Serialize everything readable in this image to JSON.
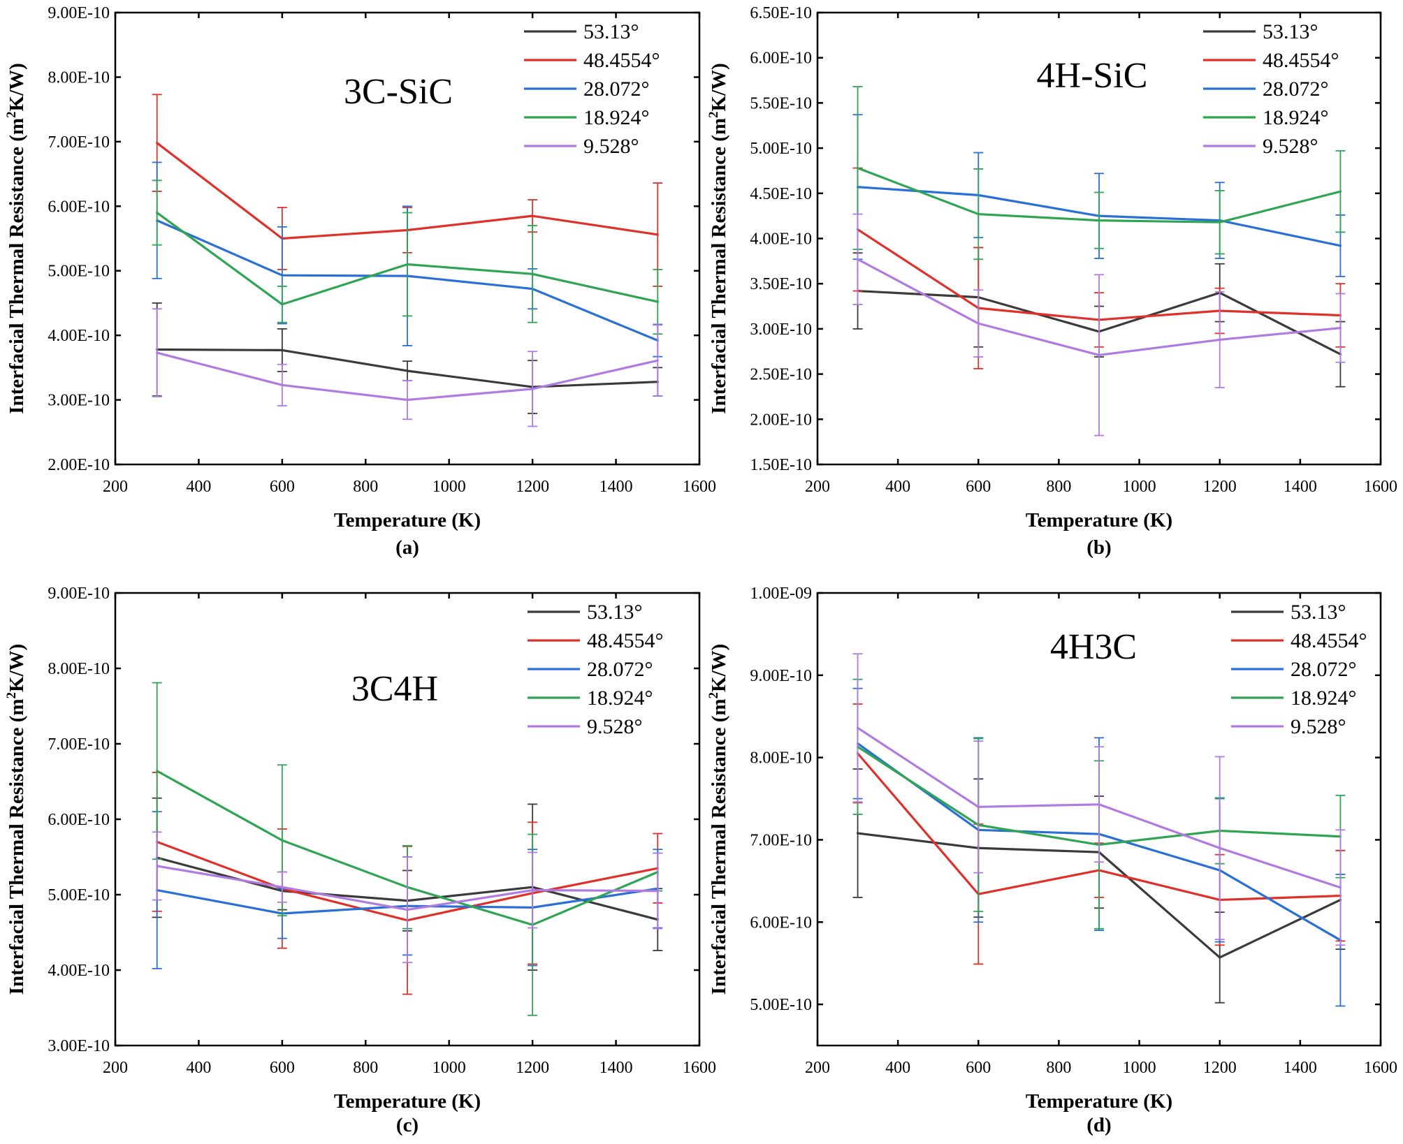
{
  "colors": {
    "53.13°": "#3a3a3a",
    "48.4554°": "#e0302a",
    "28.072°": "#2a6fd6",
    "18.924°": "#2fa554",
    "9.528°": "#b07ae0"
  },
  "chart_data": [
    {
      "type": "line",
      "panel_label": "(a)",
      "title": "3C-SiC",
      "xlabel": "Temperature (K)",
      "ylabel_main": "Interfacial Thermal Resistance (m",
      "ylabel_sup": "2",
      "ylabel_end": "K/W)",
      "xlim": [
        200,
        1600
      ],
      "ylim": [
        2e-10,
        9e-10
      ],
      "x_ticks": [
        "200",
        "400",
        "600",
        "800",
        "1000",
        "1200",
        "1400",
        "1600"
      ],
      "y_ticks": [
        "2.00E-10",
        "3.00E-10",
        "4.00E-10",
        "5.00E-10",
        "6.00E-10",
        "7.00E-10",
        "8.00E-10",
        "9.00E-10"
      ],
      "x": [
        300,
        600,
        900,
        1200,
        1500
      ],
      "series": [
        {
          "name": "53.13°",
          "values": [
            3.78e-10,
            3.77e-10,
            3.45e-10,
            3.2e-10,
            3.28e-10
          ],
          "errors": [
            7.2e-11,
            3.3e-11,
            1.5e-11,
            4.1e-11,
            2.2e-11
          ]
        },
        {
          "name": "48.4554°",
          "values": [
            6.98e-10,
            5.5e-10,
            5.63e-10,
            5.85e-10,
            5.56e-10
          ],
          "errors": [
            7.5e-11,
            4.8e-11,
            3.5e-11,
            2.5e-11,
            8e-11
          ]
        },
        {
          "name": "28.072°",
          "values": [
            5.78e-10,
            4.93e-10,
            4.92e-10,
            4.72e-10,
            3.92e-10
          ],
          "errors": [
            9e-11,
            7.5e-11,
            1.08e-10,
            3.1e-11,
            2.5e-11
          ]
        },
        {
          "name": "18.924°",
          "values": [
            5.9e-10,
            4.48e-10,
            5.1e-10,
            4.95e-10,
            4.52e-10
          ],
          "errors": [
            5e-11,
            2.8e-11,
            8e-11,
            7.5e-11,
            5e-11
          ]
        },
        {
          "name": "9.528°",
          "values": [
            3.73e-10,
            3.23e-10,
            3e-10,
            3.17e-10,
            3.61e-10
          ],
          "errors": [
            6.8e-11,
            3.2e-11,
            3e-11,
            5.8e-11,
            5.5e-11
          ]
        }
      ]
    },
    {
      "type": "line",
      "panel_label": "(b)",
      "title": "4H-SiC",
      "xlabel": "Temperature (K)",
      "ylabel_main": "Interfacial Thermal Resistance (m",
      "ylabel_sup": "2",
      "ylabel_end": "K/W)",
      "xlim": [
        200,
        1600
      ],
      "ylim": [
        1.5e-10,
        6.5e-10
      ],
      "x_ticks": [
        "200",
        "400",
        "600",
        "800",
        "1000",
        "1200",
        "1400",
        "1600"
      ],
      "y_ticks": [
        "1.50E-10",
        "2.00E-10",
        "2.50E-10",
        "3.00E-10",
        "3.50E-10",
        "4.00E-10",
        "4.50E-10",
        "5.00E-10",
        "5.50E-10",
        "6.00E-10",
        "6.50E-10"
      ],
      "x": [
        300,
        600,
        900,
        1200,
        1500
      ],
      "series": [
        {
          "name": "53.13°",
          "values": [
            3.42e-10,
            3.35e-10,
            2.97e-10,
            3.4e-10,
            2.72e-10
          ],
          "errors": [
            4.2e-11,
            5.5e-11,
            2.8e-11,
            3.2e-11,
            3.6e-11
          ]
        },
        {
          "name": "48.4554°",
          "values": [
            4.1e-10,
            3.23e-10,
            3.1e-10,
            3.2e-10,
            3.15e-10
          ],
          "errors": [
            6.8e-11,
            6.7e-11,
            3e-11,
            2.5e-11,
            3.5e-11
          ]
        },
        {
          "name": "28.072°",
          "values": [
            4.57e-10,
            4.48e-10,
            4.25e-10,
            4.2e-10,
            3.92e-10
          ],
          "errors": [
            8e-11,
            4.7e-11,
            4.7e-11,
            4.2e-11,
            3.4e-11
          ]
        },
        {
          "name": "18.924°",
          "values": [
            4.78e-10,
            4.27e-10,
            4.2e-10,
            4.18e-10,
            4.52e-10
          ],
          "errors": [
            9e-11,
            5e-11,
            3.1e-11,
            3.5e-11,
            4.5e-11
          ]
        },
        {
          "name": "9.528°",
          "values": [
            3.77e-10,
            3.06e-10,
            2.71e-10,
            2.88e-10,
            3.01e-10
          ],
          "errors": [
            5e-11,
            3.7e-11,
            8.9e-11,
            5.3e-11,
            3.8e-11
          ]
        }
      ]
    },
    {
      "type": "line",
      "panel_label": "(c)",
      "title": "3C4H",
      "xlabel": "Temperature (K)",
      "ylabel_main": "Interfacial Thermal Resistance (m",
      "ylabel_sup": "2",
      "ylabel_end": "K/W)",
      "xlim": [
        200,
        1600
      ],
      "ylim": [
        3e-10,
        9e-10
      ],
      "x_ticks": [
        "200",
        "400",
        "600",
        "800",
        "1000",
        "1200",
        "1400",
        "1600"
      ],
      "y_ticks": [
        "3.00E-10",
        "4.00E-10",
        "5.00E-10",
        "6.00E-10",
        "7.00E-10",
        "8.00E-10",
        "9.00E-10"
      ],
      "x": [
        300,
        600,
        900,
        1200,
        1500
      ],
      "series": [
        {
          "name": "53.13°",
          "values": [
            5.49e-10,
            5.05e-10,
            4.92e-10,
            5.1e-10,
            4.67e-10
          ],
          "errors": [
            7.9e-11,
            2.5e-11,
            4e-11,
            1.1e-10,
            4.1e-11
          ]
        },
        {
          "name": "48.4554°",
          "values": [
            5.7e-10,
            5.08e-10,
            4.66e-10,
            5.02e-10,
            5.35e-10
          ],
          "errors": [
            9.2e-11,
            7.9e-11,
            9.8e-11,
            9.4e-11,
            4.6e-11
          ]
        },
        {
          "name": "28.072°",
          "values": [
            5.06e-10,
            4.75e-10,
            4.85e-10,
            4.83e-10,
            5.08e-10
          ],
          "errors": [
            1.04e-10,
            3.3e-11,
            6.5e-11,
            7.7e-11,
            5.2e-11
          ]
        },
        {
          "name": "18.924°",
          "values": [
            6.64e-10,
            5.72e-10,
            5.1e-10,
            4.6e-10,
            5.3e-10
          ],
          "errors": [
            1.17e-10,
            1e-10,
            5.5e-11,
            1.2e-10,
            2.5e-11
          ]
        },
        {
          "name": "9.528°",
          "values": [
            5.38e-10,
            5.1e-10,
            4.8e-10,
            5.06e-10,
            5.05e-10
          ],
          "errors": [
            4.5e-11,
            2e-11,
            7e-11,
            5e-11,
            5e-11
          ]
        }
      ]
    },
    {
      "type": "line",
      "panel_label": "(d)",
      "title": "4H3C",
      "xlabel": "Temperature (K)",
      "ylabel_main": "Interfacial Thermal Resistance (m",
      "ylabel_sup": "2",
      "ylabel_end": "K/W)",
      "xlim": [
        200,
        1600
      ],
      "ylim": [
        4.5e-10,
        1e-09
      ],
      "y_ticks_start": 5e-10,
      "x_ticks": [
        "200",
        "400",
        "600",
        "800",
        "1000",
        "1200",
        "1400",
        "1600"
      ],
      "y_ticks": [
        "5.00E-10",
        "6.00E-10",
        "7.00E-10",
        "8.00E-10",
        "9.00E-10",
        "1.00E-09"
      ],
      "x": [
        300,
        600,
        900,
        1200,
        1500
      ],
      "series": [
        {
          "name": "53.13°",
          "values": [
            7.08e-10,
            6.9e-10,
            6.85e-10,
            5.57e-10,
            6.27e-10
          ],
          "errors": [
            7.8e-11,
            8.4e-11,
            6.8e-11,
            5.5e-11,
            6e-11
          ]
        },
        {
          "name": "48.4554°",
          "values": [
            8.05e-10,
            6.34e-10,
            6.63e-10,
            6.27e-10,
            6.32e-10
          ],
          "errors": [
            6e-11,
            8.5e-11,
            3.3e-11,
            5.5e-11,
            5.5e-11
          ]
        },
        {
          "name": "28.072°",
          "values": [
            8.17e-10,
            7.12e-10,
            7.07e-10,
            6.63e-10,
            5.78e-10
          ],
          "errors": [
            6.7e-11,
            1.12e-10,
            1.17e-10,
            8.7e-11,
            8e-11
          ]
        },
        {
          "name": "18.924°",
          "values": [
            8.13e-10,
            7.18e-10,
            6.94e-10,
            7.11e-10,
            7.04e-10
          ],
          "errors": [
            8.2e-11,
            1.05e-10,
            1.02e-10,
            4e-11,
            5e-11
          ]
        },
        {
          "name": "9.528°",
          "values": [
            8.36e-10,
            7.4e-10,
            7.43e-10,
            6.9e-10,
            6.42e-10
          ],
          "errors": [
            9e-11,
            8e-11,
            7e-11,
            1.11e-10,
            7e-11
          ]
        }
      ]
    }
  ]
}
